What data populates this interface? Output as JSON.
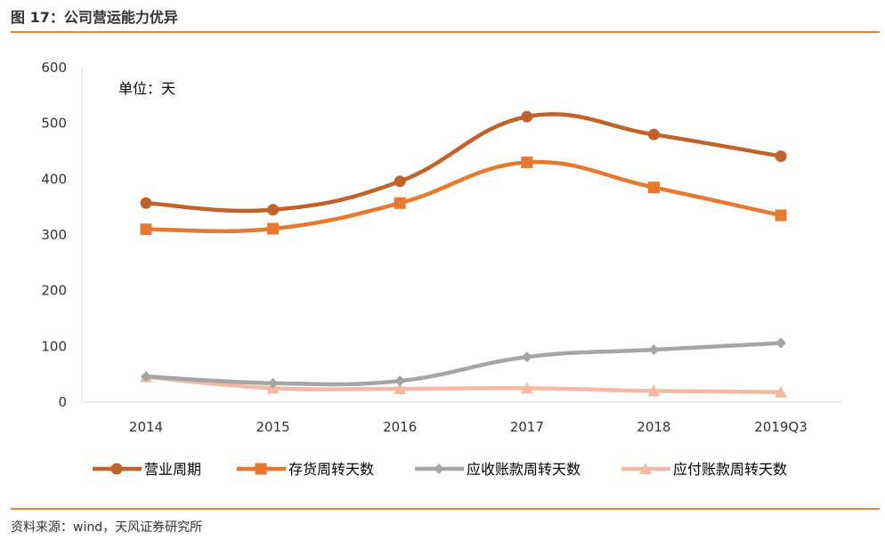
{
  "figure_title": "图 17：公司营运能力优异",
  "source_note": "资料来源：wind，天风证券研究所",
  "chart_data": {
    "type": "line",
    "categories": [
      "2014",
      "2015",
      "2016",
      "2017",
      "2018",
      "2019Q3"
    ],
    "unit_label": "单位：天",
    "ylim": [
      0,
      600
    ],
    "yticks": [
      0,
      100,
      200,
      300,
      400,
      500,
      600
    ],
    "grid": false,
    "legend_position": "bottom",
    "series": [
      {
        "name": "营业周期",
        "values": [
          357,
          345,
          396,
          512,
          480,
          441
        ],
        "color": "#c0622a",
        "marker": "circle"
      },
      {
        "name": "存货周转天数",
        "values": [
          310,
          311,
          357,
          430,
          385,
          335
        ],
        "color": "#e8782f",
        "marker": "square"
      },
      {
        "name": "应收账款周转天数",
        "values": [
          46,
          34,
          38,
          81,
          94,
          106
        ],
        "color": "#a5a5a5",
        "marker": "diamond"
      },
      {
        "name": "应付账款周转天数",
        "values": [
          45,
          25,
          24,
          25,
          20,
          18
        ],
        "color": "#f4b9a3",
        "marker": "triangle"
      }
    ]
  }
}
